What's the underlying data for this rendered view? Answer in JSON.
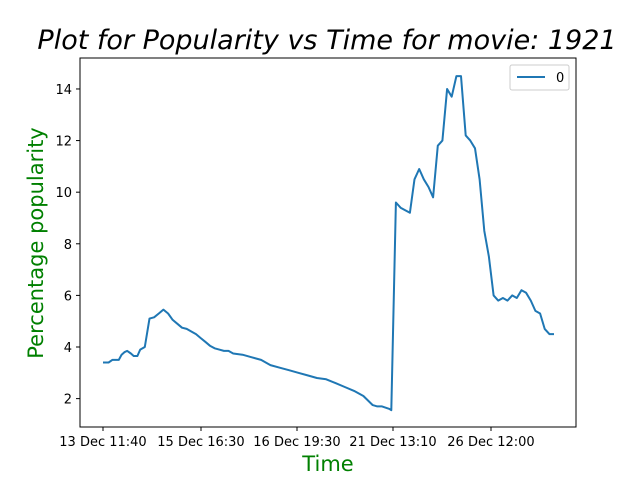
{
  "chart_data": {
    "type": "line",
    "title": "Plot for Popularity vs Time for movie: 1921",
    "xlabel": "Time",
    "ylabel": "Percentage popularity",
    "x_tick_labels": [
      "13 Dec 11:40",
      "15 Dec 16:30",
      "16 Dec 19:30",
      "21 Dec 13:10",
      "26 Dec 12:00"
    ],
    "y_ticks": [
      2,
      4,
      6,
      8,
      10,
      12,
      14
    ],
    "ylim": [
      0.9,
      15.2
    ],
    "grid": false,
    "legend": {
      "placement": "top-right",
      "entries": [
        "0"
      ]
    },
    "series": [
      {
        "name": "0",
        "color": "#1f77b4",
        "x": [
          0,
          0.06,
          0.1,
          0.13,
          0.17,
          0.2,
          0.23,
          0.26,
          0.3,
          0.33,
          0.37,
          0.4,
          0.45,
          0.5,
          0.55,
          0.6,
          0.65,
          0.7,
          0.75,
          0.8,
          0.85,
          0.9,
          0.95,
          1.0,
          1.05,
          1.1,
          1.15,
          1.2,
          1.25,
          1.3,
          1.35,
          1.4,
          1.5,
          1.6,
          1.7,
          1.8,
          1.9,
          2.0,
          2.1,
          2.2,
          2.3,
          2.4,
          2.5,
          2.6,
          2.7,
          2.8,
          2.9,
          2.95,
          3.0,
          3.08,
          3.1,
          3.15,
          3.2,
          3.25,
          3.3,
          3.35,
          3.4,
          3.45,
          3.5,
          3.55,
          3.6,
          3.65,
          3.7,
          3.75,
          3.8,
          3.85,
          3.9,
          3.95,
          4.0,
          4.05,
          4.1,
          4.15,
          4.2,
          4.25,
          4.3,
          4.35,
          4.4,
          4.45,
          4.5,
          4.55,
          4.6,
          4.65,
          4.7,
          4.75,
          4.8,
          4.85
        ],
        "y": [
          3.4,
          3.4,
          3.5,
          3.5,
          3.5,
          3.7,
          3.8,
          3.85,
          3.75,
          3.65,
          3.65,
          3.9,
          4.0,
          5.1,
          5.15,
          5.3,
          5.45,
          5.3,
          5.05,
          4.9,
          4.75,
          4.7,
          4.6,
          4.5,
          4.35,
          4.2,
          4.05,
          3.95,
          3.9,
          3.85,
          3.85,
          3.75,
          3.7,
          3.6,
          3.5,
          3.3,
          3.2,
          3.1,
          3.0,
          2.9,
          2.8,
          2.75,
          2.6,
          2.45,
          2.3,
          2.1,
          1.75,
          1.7,
          1.7,
          1.6,
          1.55,
          9.6,
          9.4,
          9.3,
          9.2,
          10.5,
          10.9,
          10.5,
          10.2,
          9.8,
          11.8,
          12.0,
          14.0,
          13.7,
          14.5,
          14.5,
          12.2,
          12.0,
          11.7,
          10.5,
          8.5,
          7.5,
          6.0,
          5.8,
          5.9,
          5.8,
          6.0,
          5.9,
          6.2,
          6.1,
          5.8,
          5.4,
          5.3,
          4.7,
          4.5,
          4.5
        ]
      }
    ]
  }
}
